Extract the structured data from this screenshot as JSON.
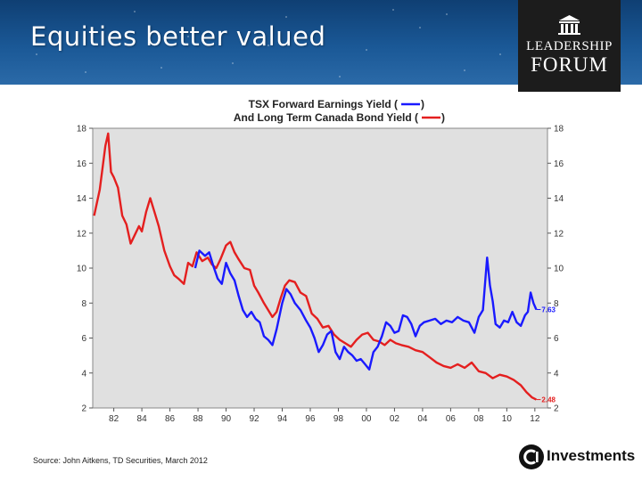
{
  "slide": {
    "title": "Equities better valued",
    "source": "Source: John Aitkens, TD Securities, March 2012"
  },
  "logo": {
    "line1": "LEADERSHIP",
    "line2": "FORUM",
    "icon": "temple-icon"
  },
  "brand": {
    "text": "Investments",
    "icon": "ci-logo-icon"
  },
  "chart_data": {
    "type": "line",
    "title_line1": "TSX Forward Earnings Yield (",
    "title_line2": "And Long Term Canada Bond Yield (",
    "title_close": ")",
    "x_ticks": [
      "82",
      "84",
      "86",
      "88",
      "90",
      "92",
      "94",
      "96",
      "98",
      "00",
      "02",
      "04",
      "06",
      "08",
      "10",
      "12"
    ],
    "y_ticks": [
      2,
      4,
      6,
      8,
      10,
      12,
      14,
      16,
      18
    ],
    "xlim": [
      1980.5,
      2012.9
    ],
    "ylim": [
      2,
      18
    ],
    "grid": false,
    "colors": {
      "bond": "#e41f1f",
      "earnings": "#1a1aff",
      "plot_bg": "#e0e0e0"
    },
    "series": [
      {
        "key": "bond",
        "end_label": "2.48",
        "x": [
          1980.6,
          1981.0,
          1981.4,
          1981.6,
          1981.8,
          1982.0,
          1982.3,
          1982.6,
          1982.9,
          1983.2,
          1983.5,
          1983.8,
          1984.0,
          1984.3,
          1984.6,
          1984.9,
          1985.2,
          1985.6,
          1986.0,
          1986.3,
          1986.6,
          1987.0,
          1987.3,
          1987.6,
          1987.9,
          1988.3,
          1988.7,
          1989.0,
          1989.3,
          1989.6,
          1990.0,
          1990.3,
          1990.6,
          1990.9,
          1991.3,
          1991.7,
          1992.0,
          1992.3,
          1992.7,
          1993.0,
          1993.3,
          1993.6,
          1993.9,
          1994.2,
          1994.5,
          1994.9,
          1995.3,
          1995.7,
          1996.1,
          1996.5,
          1996.9,
          1997.3,
          1997.7,
          1998.1,
          1998.5,
          1998.9,
          1999.3,
          1999.7,
          2000.1,
          2000.5,
          2000.9,
          2001.3,
          2001.7,
          2002.1,
          2002.5,
          2003.0,
          2003.5,
          2004.0,
          2004.5,
          2005.0,
          2005.5,
          2006.0,
          2006.5,
          2007.0,
          2007.5,
          2008.0,
          2008.5,
          2009.0,
          2009.5,
          2010.0,
          2010.5,
          2011.0,
          2011.4,
          2011.8,
          2012.1
        ],
        "y": [
          13.0,
          14.5,
          17.0,
          17.7,
          15.5,
          15.2,
          14.6,
          13.0,
          12.5,
          11.4,
          11.9,
          12.4,
          12.1,
          13.2,
          14.0,
          13.2,
          12.4,
          11.0,
          10.1,
          9.6,
          9.4,
          9.1,
          10.3,
          10.1,
          10.9,
          10.4,
          10.6,
          10.2,
          10.0,
          10.5,
          11.3,
          11.5,
          10.9,
          10.5,
          10.0,
          9.9,
          9.0,
          8.6,
          8.0,
          7.6,
          7.2,
          7.5,
          8.3,
          9.0,
          9.3,
          9.2,
          8.6,
          8.4,
          7.4,
          7.1,
          6.6,
          6.7,
          6.2,
          5.9,
          5.7,
          5.5,
          5.9,
          6.2,
          6.3,
          5.9,
          5.8,
          5.6,
          5.9,
          5.7,
          5.6,
          5.5,
          5.3,
          5.2,
          4.9,
          4.6,
          4.4,
          4.3,
          4.5,
          4.3,
          4.6,
          4.1,
          4.0,
          3.7,
          3.9,
          3.8,
          3.6,
          3.3,
          2.9,
          2.6,
          2.48
        ]
      },
      {
        "key": "earnings",
        "end_label": "7.63",
        "x": [
          1987.8,
          1988.1,
          1988.5,
          1988.8,
          1989.1,
          1989.4,
          1989.7,
          1990.0,
          1990.3,
          1990.6,
          1990.9,
          1991.2,
          1991.5,
          1991.8,
          1992.1,
          1992.4,
          1992.7,
          1993.0,
          1993.3,
          1993.6,
          1994.0,
          1994.3,
          1994.6,
          1994.9,
          1995.3,
          1995.7,
          1996.0,
          1996.3,
          1996.6,
          1996.9,
          1997.2,
          1997.5,
          1997.8,
          1998.1,
          1998.4,
          1998.7,
          1999.0,
          1999.3,
          1999.6,
          1999.9,
          2000.2,
          2000.5,
          2000.8,
          2001.1,
          2001.4,
          2001.7,
          2002.0,
          2002.3,
          2002.6,
          2002.9,
          2003.2,
          2003.5,
          2003.8,
          2004.1,
          2004.5,
          2004.9,
          2005.3,
          2005.7,
          2006.1,
          2006.5,
          2006.9,
          2007.3,
          2007.7,
          2008.0,
          2008.3,
          2008.6,
          2008.8,
          2009.0,
          2009.2,
          2009.5,
          2009.8,
          2010.1,
          2010.4,
          2010.7,
          2011.0,
          2011.3,
          2011.5,
          2011.7,
          2011.9,
          2012.1
        ],
        "y": [
          10.0,
          11.0,
          10.7,
          10.9,
          10.1,
          9.4,
          9.1,
          10.3,
          9.7,
          9.3,
          8.4,
          7.6,
          7.2,
          7.5,
          7.1,
          6.9,
          6.1,
          5.9,
          5.6,
          6.5,
          8.0,
          8.8,
          8.5,
          8.0,
          7.6,
          7.0,
          6.6,
          6.0,
          5.2,
          5.6,
          6.2,
          6.4,
          5.2,
          4.8,
          5.5,
          5.2,
          5.0,
          4.7,
          4.8,
          4.5,
          4.2,
          5.2,
          5.5,
          6.1,
          6.9,
          6.7,
          6.3,
          6.4,
          7.3,
          7.2,
          6.8,
          6.1,
          6.7,
          6.9,
          7.0,
          7.1,
          6.8,
          7.0,
          6.9,
          7.2,
          7.0,
          6.9,
          6.3,
          7.2,
          7.6,
          10.6,
          9.0,
          8.1,
          6.8,
          6.6,
          7.0,
          6.9,
          7.5,
          6.9,
          6.7,
          7.3,
          7.5,
          8.6,
          8.0,
          7.63
        ]
      }
    ]
  }
}
